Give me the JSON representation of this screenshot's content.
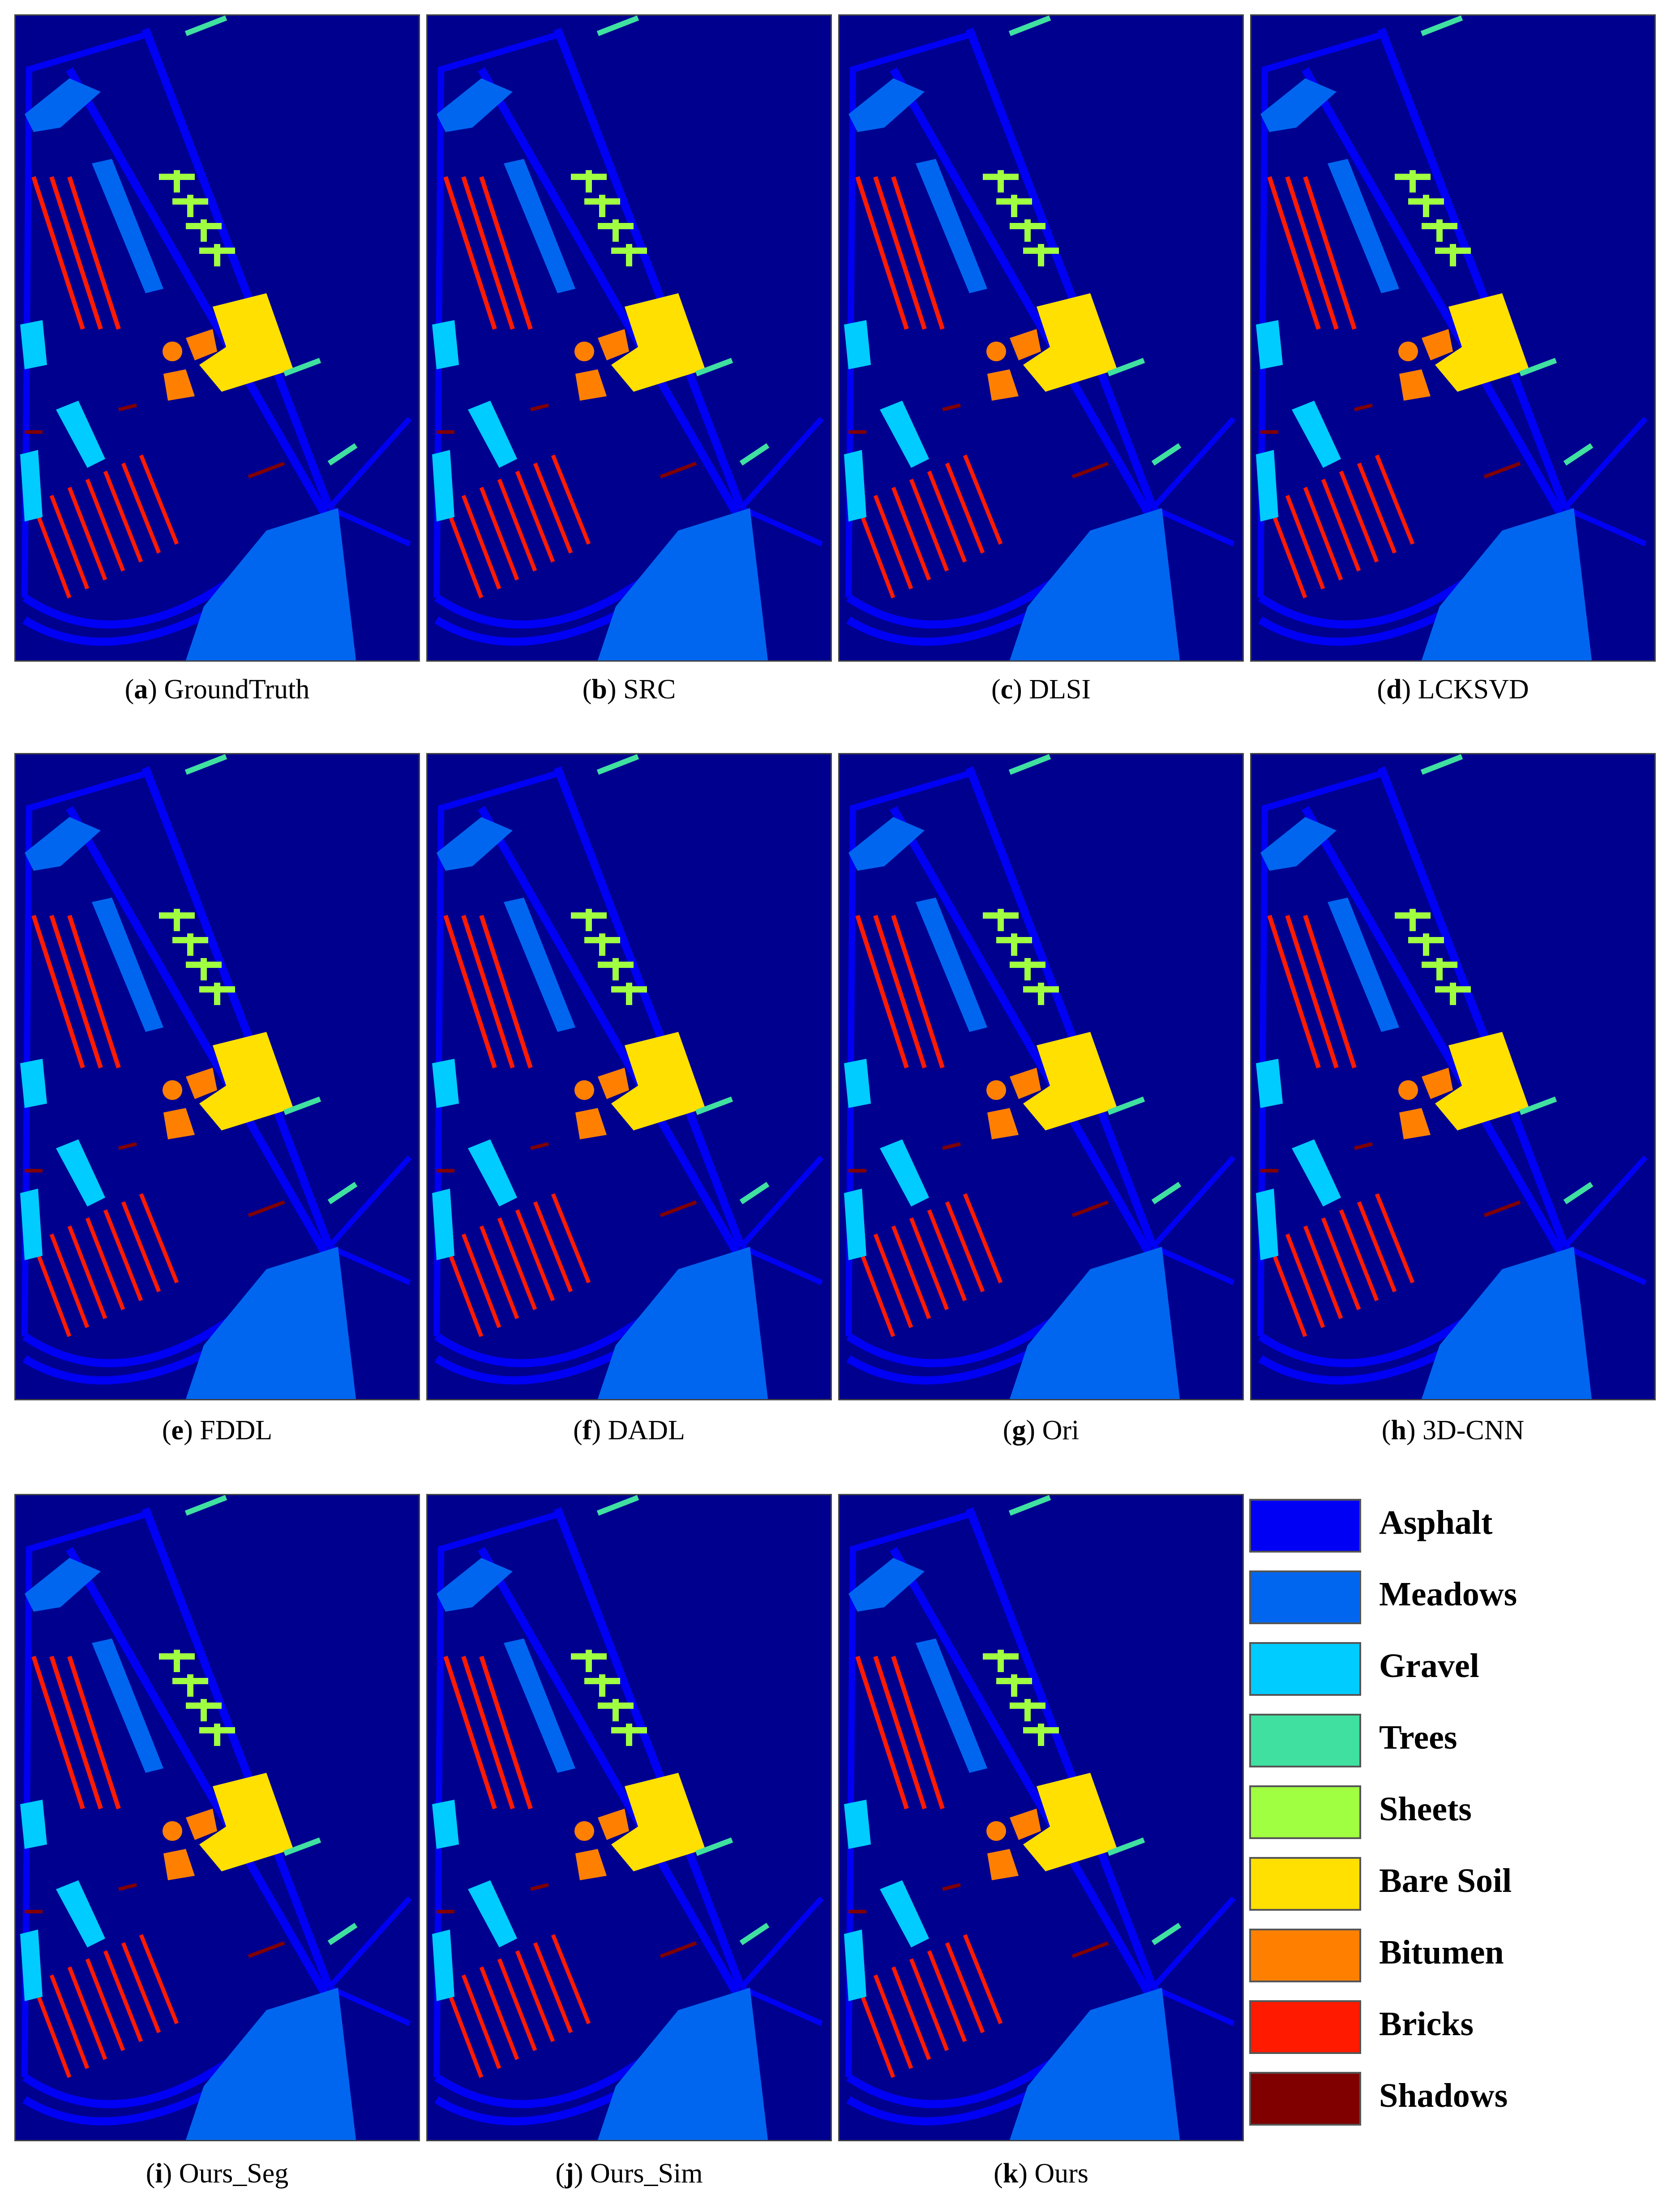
{
  "panels": [
    {
      "label": "a",
      "name": "GroundTruth"
    },
    {
      "label": "b",
      "name": "SRC"
    },
    {
      "label": "c",
      "name": "DLSI"
    },
    {
      "label": "d",
      "name": "LCKSVD"
    },
    {
      "label": "e",
      "name": "FDDL"
    },
    {
      "label": "f",
      "name": "DADL"
    },
    {
      "label": "g",
      "name": "Ori"
    },
    {
      "label": "h",
      "name": "3D-CNN"
    },
    {
      "label": "i",
      "name": "Ours_Seg"
    },
    {
      "label": "j",
      "name": "Ours_Sim"
    },
    {
      "label": "k",
      "name": "Ours"
    }
  ],
  "legend": [
    {
      "label": "Asphalt",
      "color": "#0000f5"
    },
    {
      "label": "Meadows",
      "color": "#0066f0"
    },
    {
      "label": "Gravel",
      "color": "#00ccff"
    },
    {
      "label": "Trees",
      "color": "#40e0a0"
    },
    {
      "label": "Sheets",
      "color": "#a0ff40"
    },
    {
      "label": "Bare Soil",
      "color": "#ffe000"
    },
    {
      "label": "Bitumen",
      "color": "#ff8000"
    },
    {
      "label": "Bricks",
      "color": "#ff1a00"
    },
    {
      "label": "Shadows",
      "color": "#800000"
    }
  ],
  "colors": {
    "background": "#00008f"
  }
}
